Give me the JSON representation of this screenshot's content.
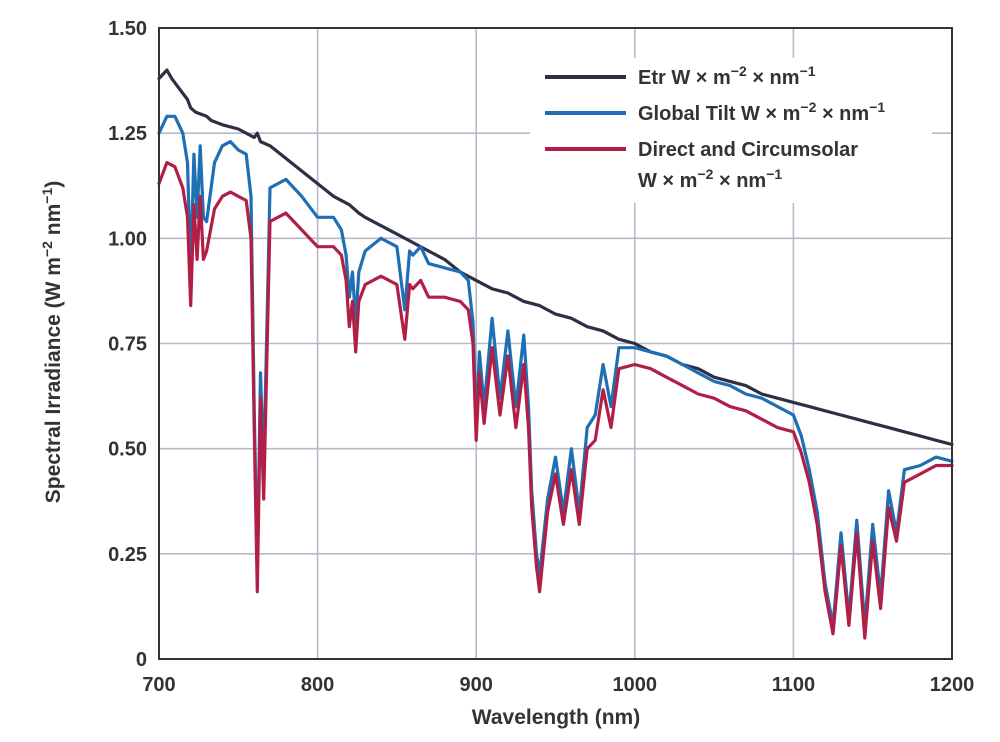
{
  "chart_data": {
    "type": "line",
    "title": "",
    "xlabel": "Wavelength (nm)",
    "ylabel": "Spectral Irradiance (W m",
    "ylabel_parts": {
      "base": "Spectral Irradiance (W m",
      "exp1": "−2",
      "mid": " nm",
      "exp2": "−1",
      "end": ")"
    },
    "xlim": [
      700,
      1200
    ],
    "ylim": [
      0,
      1.5
    ],
    "x_ticks": [
      700,
      800,
      900,
      1000,
      1100,
      1200
    ],
    "x_tick_labels": [
      "700",
      "800",
      "900",
      "1000",
      "1100",
      "1200"
    ],
    "y_ticks": [
      0,
      0.25,
      0.5,
      0.75,
      1.0,
      1.25,
      1.5
    ],
    "y_tick_labels": [
      "0",
      "0.25",
      "0.50",
      "0.75",
      "1.00",
      "1.25",
      "1.50"
    ],
    "grid": true,
    "legend_position": "top-right",
    "series": [
      {
        "name": "Etr W × m−2 × nm−1",
        "legend_parts": {
          "pre": "Etr W × m",
          "e1": "−2",
          "mid": " × nm",
          "e2": "−1"
        },
        "color": "#2e2f45",
        "x": [
          700,
          705,
          708,
          712,
          718,
          720,
          723,
          730,
          733,
          740,
          750,
          760,
          762,
          764,
          770,
          780,
          790,
          800,
          810,
          820,
          826,
          830,
          840,
          850,
          860,
          870,
          880,
          890,
          900,
          910,
          920,
          930,
          940,
          950,
          960,
          970,
          980,
          990,
          1000,
          1010,
          1020,
          1030,
          1040,
          1050,
          1060,
          1070,
          1080,
          1090,
          1100,
          1110,
          1120,
          1130,
          1140,
          1150,
          1160,
          1170,
          1180,
          1190,
          1200
        ],
        "y": [
          1.38,
          1.4,
          1.38,
          1.36,
          1.33,
          1.31,
          1.3,
          1.29,
          1.28,
          1.27,
          1.26,
          1.24,
          1.25,
          1.23,
          1.22,
          1.19,
          1.16,
          1.13,
          1.1,
          1.08,
          1.06,
          1.05,
          1.03,
          1.01,
          0.99,
          0.97,
          0.95,
          0.92,
          0.9,
          0.88,
          0.87,
          0.85,
          0.84,
          0.82,
          0.81,
          0.79,
          0.78,
          0.76,
          0.75,
          0.73,
          0.72,
          0.7,
          0.69,
          0.67,
          0.66,
          0.65,
          0.63,
          0.62,
          0.61,
          0.6,
          0.59,
          0.58,
          0.57,
          0.56,
          0.55,
          0.54,
          0.53,
          0.52,
          0.51
        ]
      },
      {
        "name": "Global Tilt W × m−2 × nm−1",
        "legend_parts": {
          "pre": "Global Tilt W × m",
          "e1": "−2",
          "mid": " × nm",
          "e2": "−1"
        },
        "color": "#1f6fb4",
        "x": [
          700,
          705,
          710,
          715,
          718,
          720,
          722,
          724,
          726,
          728,
          730,
          735,
          740,
          745,
          750,
          755,
          758,
          760,
          762,
          764,
          766,
          770,
          780,
          790,
          800,
          810,
          815,
          818,
          820,
          822,
          824,
          826,
          830,
          840,
          850,
          855,
          858,
          860,
          865,
          870,
          880,
          890,
          895,
          898,
          900,
          902,
          905,
          910,
          915,
          920,
          925,
          930,
          933,
          935,
          938,
          940,
          945,
          950,
          955,
          960,
          965,
          970,
          975,
          980,
          985,
          990,
          1000,
          1010,
          1020,
          1030,
          1040,
          1050,
          1060,
          1070,
          1080,
          1090,
          1100,
          1105,
          1110,
          1115,
          1120,
          1125,
          1130,
          1135,
          1140,
          1145,
          1150,
          1155,
          1160,
          1165,
          1170,
          1180,
          1190,
          1200
        ],
        "y": [
          1.25,
          1.29,
          1.29,
          1.25,
          1.18,
          0.92,
          1.2,
          1.05,
          1.22,
          1.05,
          1.04,
          1.18,
          1.22,
          1.23,
          1.21,
          1.2,
          1.1,
          0.6,
          0.2,
          0.68,
          0.45,
          1.12,
          1.14,
          1.1,
          1.05,
          1.05,
          1.02,
          0.96,
          0.86,
          0.92,
          0.8,
          0.92,
          0.97,
          1.0,
          0.98,
          0.83,
          0.97,
          0.96,
          0.98,
          0.94,
          0.93,
          0.92,
          0.9,
          0.8,
          0.55,
          0.73,
          0.6,
          0.81,
          0.62,
          0.78,
          0.6,
          0.77,
          0.6,
          0.4,
          0.25,
          0.2,
          0.38,
          0.48,
          0.35,
          0.5,
          0.35,
          0.55,
          0.58,
          0.7,
          0.6,
          0.74,
          0.74,
          0.73,
          0.72,
          0.7,
          0.68,
          0.66,
          0.65,
          0.63,
          0.62,
          0.6,
          0.58,
          0.53,
          0.45,
          0.35,
          0.18,
          0.08,
          0.3,
          0.1,
          0.33,
          0.08,
          0.32,
          0.15,
          0.4,
          0.3,
          0.45,
          0.46,
          0.48,
          0.47
        ]
      },
      {
        "name": "Direct and Circumsolar W × m−2 × nm−1",
        "legend_parts": {
          "line1": "Direct and Circumsolar",
          "pre": "W × m",
          "e1": "−2",
          "mid": " × nm",
          "e2": "−1"
        },
        "color": "#b11f46",
        "x": [
          700,
          705,
          710,
          715,
          718,
          720,
          722,
          724,
          726,
          728,
          730,
          735,
          740,
          745,
          750,
          755,
          758,
          760,
          762,
          764,
          766,
          770,
          780,
          790,
          800,
          810,
          815,
          818,
          820,
          822,
          824,
          826,
          830,
          840,
          850,
          855,
          858,
          860,
          865,
          870,
          880,
          890,
          895,
          898,
          900,
          902,
          905,
          910,
          915,
          920,
          925,
          930,
          933,
          935,
          938,
          940,
          945,
          950,
          955,
          960,
          965,
          970,
          975,
          980,
          985,
          990,
          1000,
          1010,
          1020,
          1030,
          1040,
          1050,
          1060,
          1070,
          1080,
          1090,
          1100,
          1105,
          1110,
          1115,
          1120,
          1125,
          1130,
          1135,
          1140,
          1145,
          1150,
          1155,
          1160,
          1165,
          1170,
          1180,
          1190,
          1200
        ],
        "y": [
          1.13,
          1.18,
          1.17,
          1.12,
          1.05,
          0.84,
          1.08,
          0.95,
          1.1,
          0.95,
          0.97,
          1.07,
          1.1,
          1.11,
          1.1,
          1.09,
          1.0,
          0.55,
          0.16,
          0.62,
          0.38,
          1.04,
          1.06,
          1.02,
          0.98,
          0.98,
          0.96,
          0.9,
          0.79,
          0.85,
          0.73,
          0.85,
          0.89,
          0.91,
          0.89,
          0.76,
          0.89,
          0.88,
          0.9,
          0.86,
          0.86,
          0.85,
          0.83,
          0.75,
          0.52,
          0.68,
          0.56,
          0.74,
          0.58,
          0.72,
          0.55,
          0.7,
          0.55,
          0.36,
          0.22,
          0.16,
          0.35,
          0.44,
          0.32,
          0.45,
          0.32,
          0.5,
          0.52,
          0.64,
          0.55,
          0.69,
          0.7,
          0.69,
          0.67,
          0.65,
          0.63,
          0.62,
          0.6,
          0.59,
          0.57,
          0.55,
          0.54,
          0.49,
          0.42,
          0.32,
          0.16,
          0.06,
          0.27,
          0.08,
          0.3,
          0.05,
          0.28,
          0.12,
          0.36,
          0.28,
          0.42,
          0.44,
          0.46,
          0.46
        ]
      }
    ]
  }
}
